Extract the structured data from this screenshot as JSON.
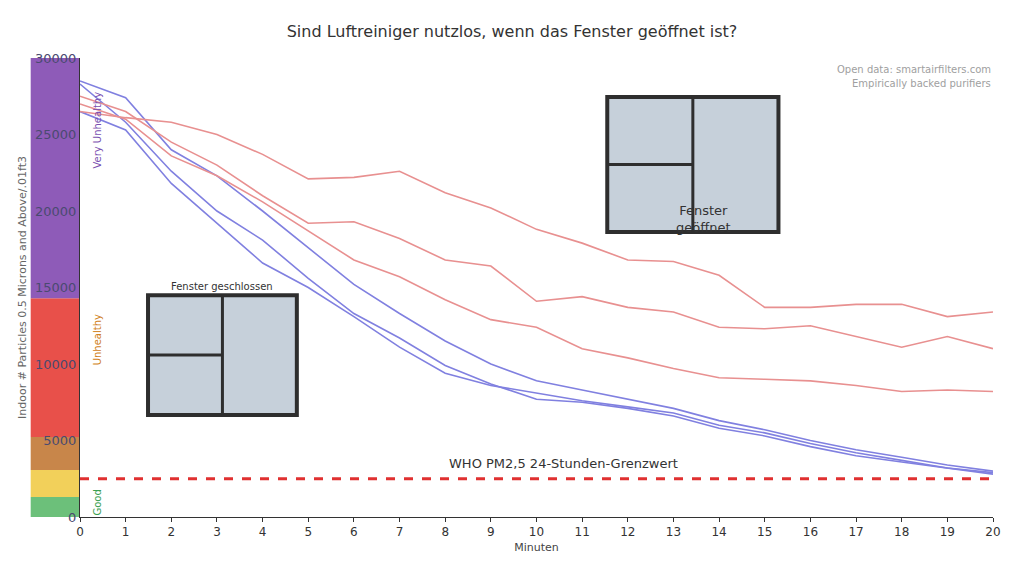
{
  "chart_data": {
    "type": "line",
    "title": "Sind Luftreiniger nutzlos, wenn das Fenster geöffnet ist?",
    "x_label": "Minuten",
    "y_label": "Indoor # Particles 0.5 Microns and Above/.01ft3",
    "x": [
      0,
      1,
      2,
      3,
      4,
      5,
      6,
      7,
      8,
      9,
      10,
      11,
      12,
      13,
      14,
      15,
      16,
      17,
      18,
      19,
      20
    ],
    "series": [
      {
        "color": "#8080e0",
        "values": [
          28500,
          27400,
          24000,
          22300,
          20000,
          17600,
          15200,
          13300,
          11500,
          10000,
          8900,
          8300,
          7700,
          7100,
          6300,
          5700,
          5000,
          4400,
          3900,
          3400,
          3000
        ]
      },
      {
        "color": "#8080e0",
        "values": [
          28300,
          25800,
          22600,
          20000,
          18100,
          15600,
          13300,
          11700,
          9900,
          8700,
          7700,
          7500,
          7100,
          6600,
          5800,
          5300,
          4600,
          4000,
          3600,
          3200,
          2800
        ]
      },
      {
        "color": "#8080e0",
        "values": [
          26500,
          25300,
          21800,
          19200,
          16600,
          15000,
          13100,
          11100,
          9400,
          8600,
          8100,
          7600,
          7200,
          6800,
          6000,
          5500,
          4800,
          4200,
          3700,
          3200,
          2900
        ]
      },
      {
        "color": "#e89090",
        "values": [
          26500,
          26100,
          25800,
          25000,
          23700,
          22100,
          22200,
          22600,
          21200,
          20200,
          18800,
          17900,
          16800,
          16700,
          15800,
          13700,
          13700,
          13900,
          13900,
          13100,
          13400
        ]
      },
      {
        "color": "#e89090",
        "values": [
          27500,
          26500,
          24500,
          23000,
          21000,
          19200,
          19300,
          18200,
          16800,
          16400,
          14100,
          14400,
          13700,
          13400,
          12400,
          12300,
          12500,
          11800,
          11100,
          11800,
          11000
        ]
      },
      {
        "color": "#e89090",
        "values": [
          27000,
          26000,
          23600,
          22300,
          20600,
          18700,
          16800,
          15700,
          14200,
          12900,
          12400,
          11000,
          10400,
          9700,
          9100,
          9000,
          8900,
          8600,
          8200,
          8300,
          8200
        ]
      }
    ],
    "xlim": [
      0,
      20
    ],
    "xticks": [
      0,
      1,
      2,
      3,
      4,
      5,
      6,
      7,
      8,
      9,
      10,
      11,
      12,
      13,
      14,
      15,
      16,
      17,
      18,
      19,
      20
    ],
    "ylim": [
      0,
      30000
    ],
    "yticks": [
      0,
      5000,
      10000,
      15000,
      20000,
      25000,
      30000
    ],
    "grid": false,
    "bands": [
      {
        "from": 0,
        "to": 1300,
        "color": "#6cc07a",
        "label": "Good"
      },
      {
        "from": 1300,
        "to": 3070,
        "color": "#f2d05a"
      },
      {
        "from": 3070,
        "to": 5230,
        "color": "#c8864a"
      },
      {
        "from": 5230,
        "to": 14300,
        "color": "#e8504a",
        "label": "Unhealthy"
      },
      {
        "from": 14300,
        "to": 30000,
        "color": "#8e5bb8",
        "label": "Very Unhealthy"
      }
    ],
    "reference_line": {
      "value": 2500,
      "label": "WHO PM2,5 24-Stunden-Grenzwert",
      "color": "#e03030",
      "line_style": "dash"
    },
    "annotations": [
      "Fenster geschlossen",
      "Fenster\ngeöffnet"
    ],
    "source": [
      "Open data: smartairfilters.com",
      "Empirically backed purifiers"
    ]
  }
}
